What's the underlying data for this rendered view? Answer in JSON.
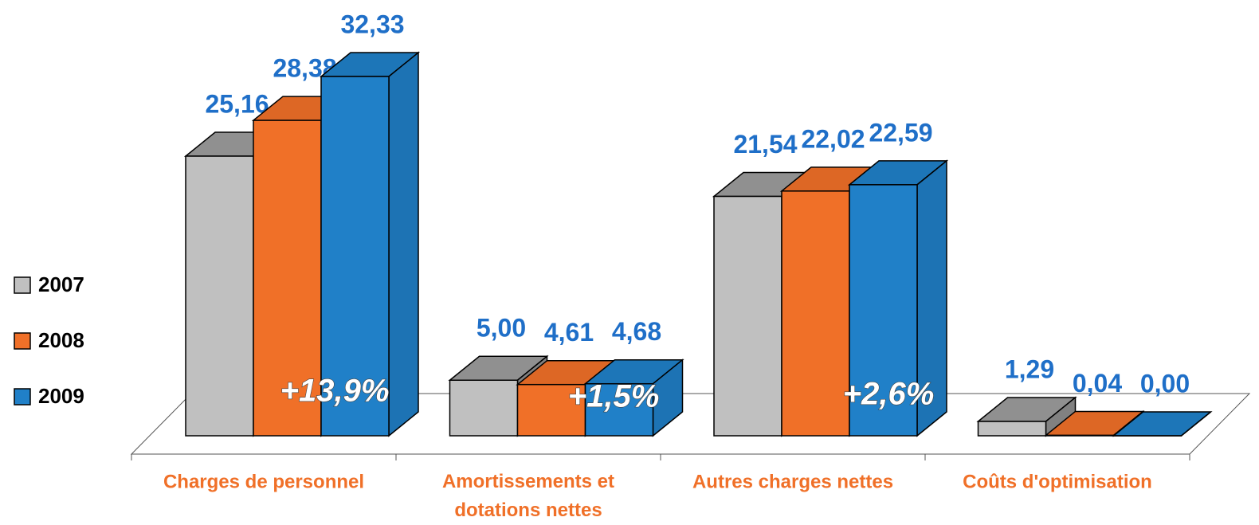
{
  "chart_data": {
    "type": "bar3d",
    "categories": [
      "Charges de personnel",
      "Amortissements et dotations nettes",
      "Autres charges nettes",
      "Coûts d'optimisation"
    ],
    "series": [
      {
        "name": "2007",
        "color": "#c0c0c0",
        "values": [
          25.16,
          5.0,
          21.54,
          1.29
        ],
        "value_labels": [
          "25,16",
          "5,00",
          "21,54",
          "1,29"
        ]
      },
      {
        "name": "2008",
        "color": "#f07028",
        "values": [
          28.38,
          4.61,
          22.02,
          0.04
        ],
        "value_labels": [
          "28,38",
          "4,61",
          "22,02",
          "0,04"
        ]
      },
      {
        "name": "2009",
        "color": "#2080c8",
        "values": [
          32.33,
          4.68,
          22.59,
          0.0
        ],
        "value_labels": [
          "32,33",
          "4,68",
          "22,59",
          "0,00"
        ]
      }
    ],
    "annotations": [
      "+13,9%",
      "+1,5%",
      "+2,6%"
    ],
    "legend": "left"
  }
}
